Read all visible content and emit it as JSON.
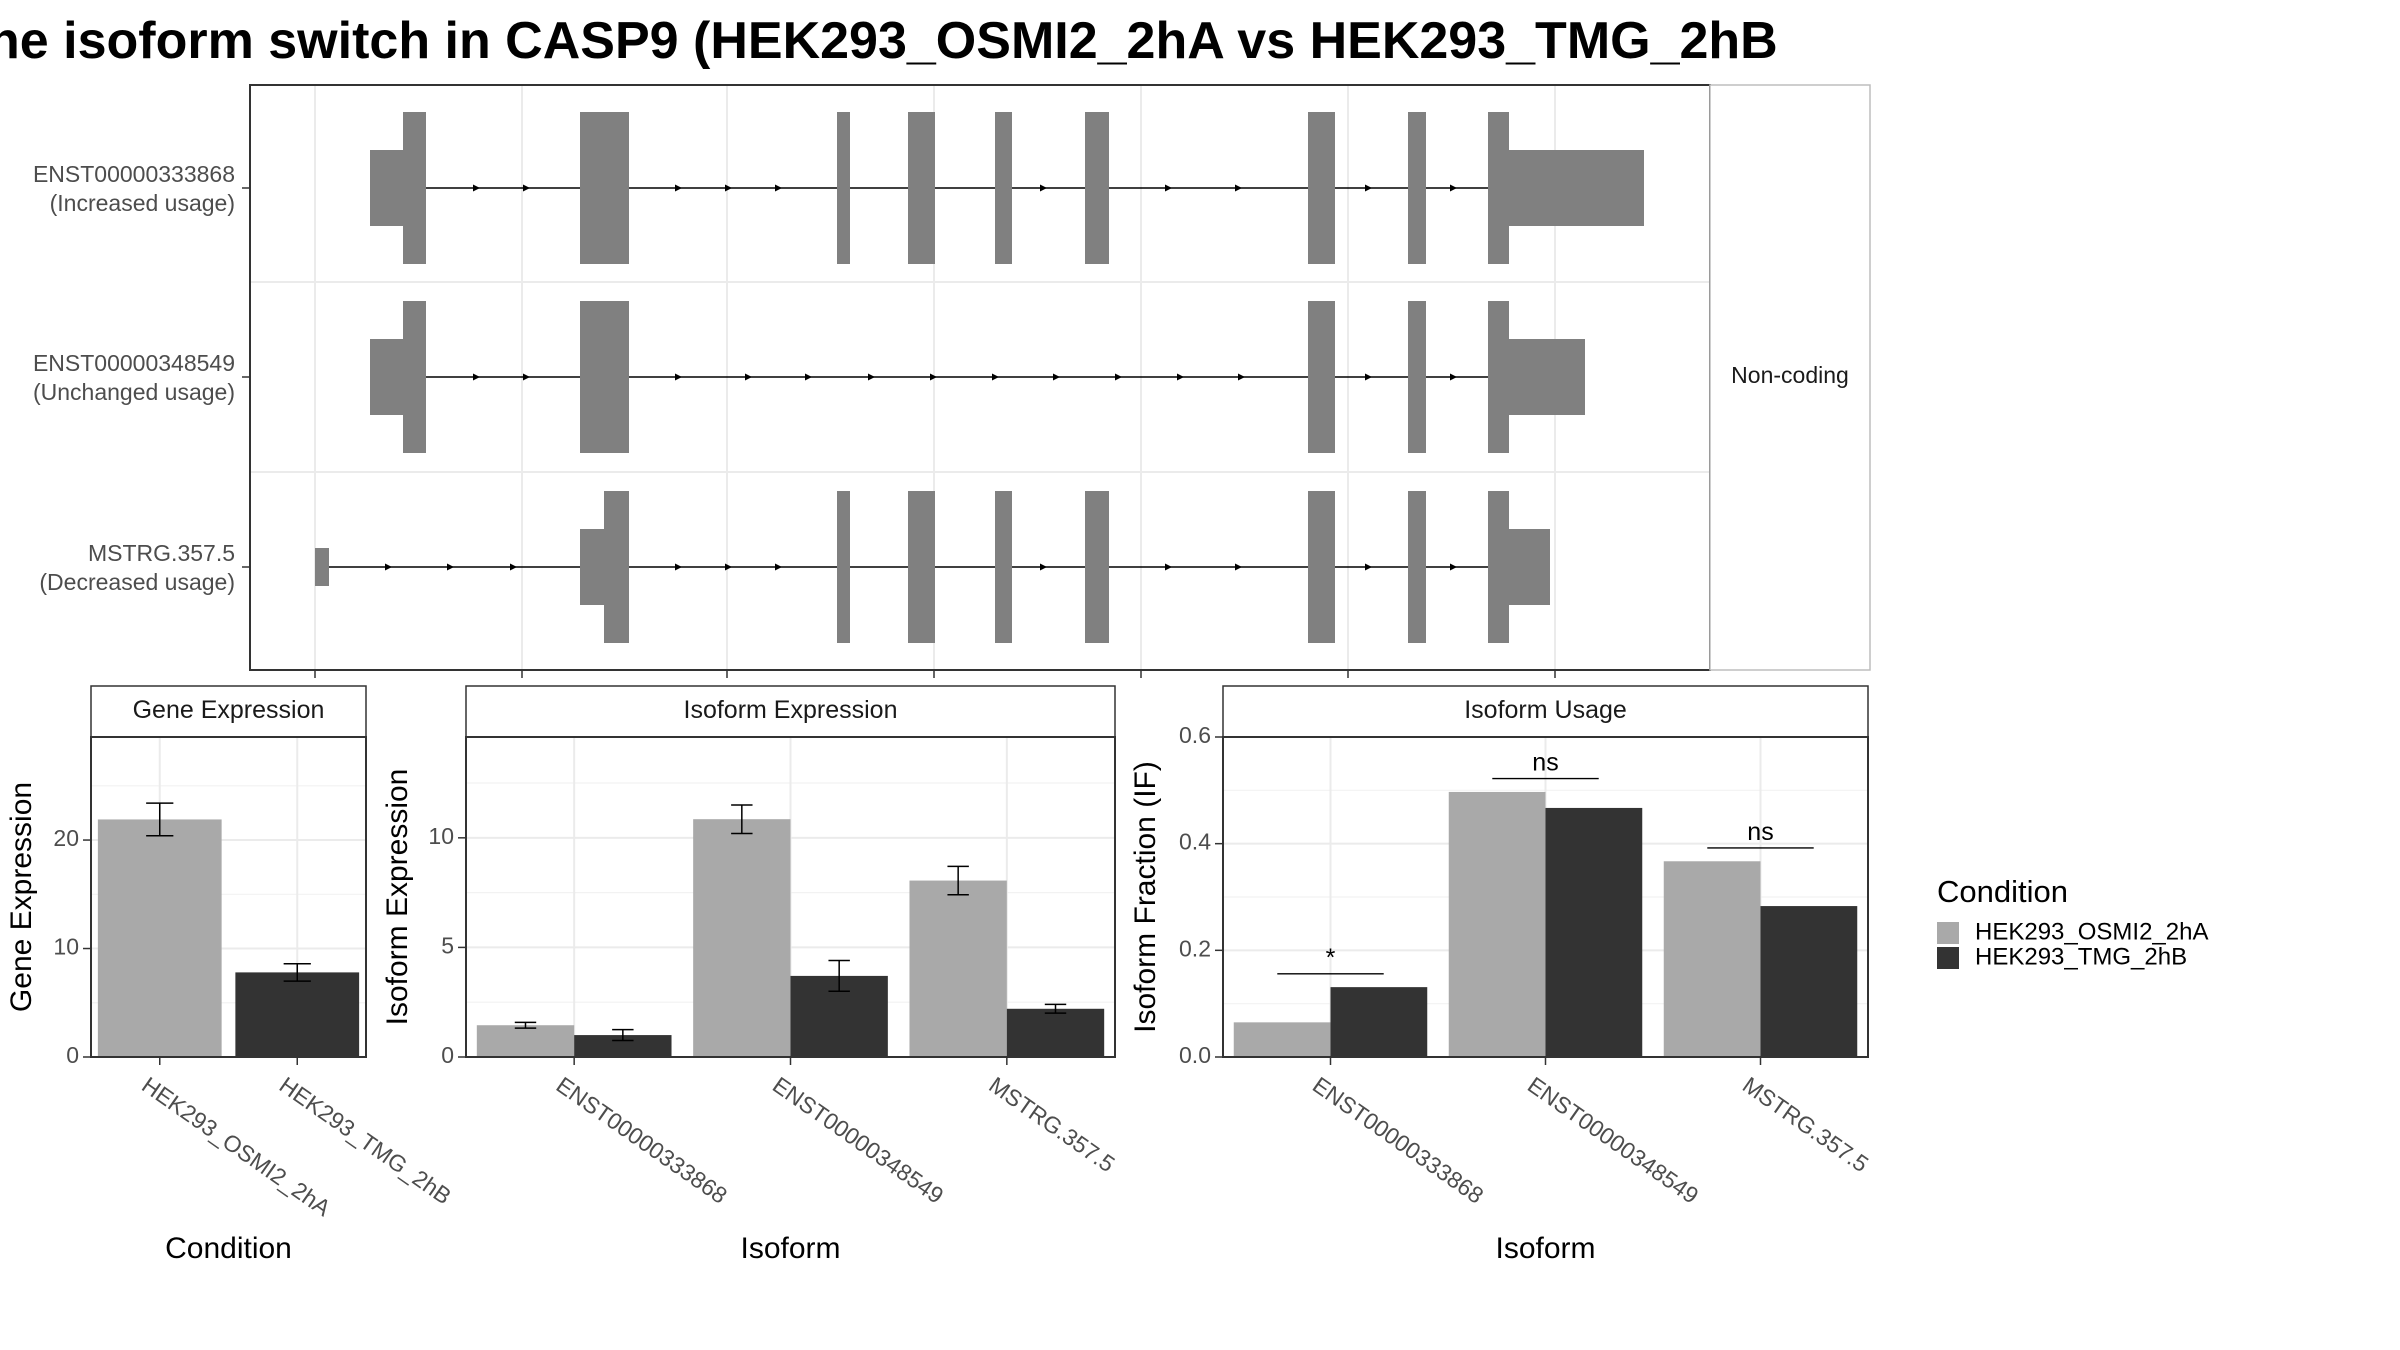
{
  "title": "he isoform switch in CASP9 (HEK293_OSMI2_2hA vs HEK293_TMG_2hB",
  "chart_data": [
    {
      "type": "transcript-structure",
      "rows": [
        {
          "id": "ENST00000333868",
          "label": "ENST00000333868",
          "sublabel": "(Increased usage)"
        },
        {
          "id": "ENST00000348549",
          "label": "ENST00000348549",
          "sublabel": "(Unchanged usage)"
        },
        {
          "id": "MSTRG.357.5",
          "label": "MSTRG.357.5",
          "sublabel": "(Decreased usage)"
        }
      ],
      "strip_label": "Non-coding",
      "feature_color": "#808080"
    },
    {
      "type": "bar",
      "title": "Gene Expression",
      "xlabel": "Condition",
      "ylabel": "Gene Expression",
      "ylim": [
        0,
        29.5
      ],
      "yticks": [
        0,
        10,
        20
      ],
      "grid": true,
      "categories": [
        "HEK293_OSMI2_2hA",
        "HEK293_TMG_2hB"
      ],
      "series": [
        {
          "values": [
            21.9,
            7.8
          ],
          "errors": [
            [
              20.4,
              23.4
            ],
            [
              7.0,
              8.6
            ]
          ],
          "colors": [
            "#a9a9a9",
            "#333333"
          ]
        }
      ]
    },
    {
      "type": "bar",
      "title": "Isoform Expression",
      "xlabel": "Isoform",
      "ylabel": "Isoform Expression",
      "ylim": [
        0,
        14.6
      ],
      "yticks": [
        0,
        5,
        10
      ],
      "grid": true,
      "categories": [
        "ENST00000333868",
        "ENST00000348549",
        "MSTRG.357.5"
      ],
      "series": [
        {
          "name": "HEK293_OSMI2_2hA",
          "color": "#a9a9a9",
          "values": [
            1.45,
            10.85,
            8.05
          ],
          "errors": [
            [
              1.32,
              1.58
            ],
            [
              10.2,
              11.5
            ],
            [
              7.4,
              8.7
            ]
          ]
        },
        {
          "name": "HEK293_TMG_2hB",
          "color": "#333333",
          "values": [
            1.0,
            3.7,
            2.2
          ],
          "errors": [
            [
              0.75,
              1.25
            ],
            [
              3.0,
              4.4
            ],
            [
              2.0,
              2.4
            ]
          ]
        }
      ]
    },
    {
      "type": "bar",
      "title": "Isoform Usage",
      "xlabel": "Isoform",
      "ylabel": "Isoform Fraction (IF)",
      "ylim": [
        0,
        0.6
      ],
      "yticks": [
        0.0,
        0.2,
        0.4,
        0.6
      ],
      "ytick_labels": [
        "0.0",
        "0.2",
        "0.4",
        "0.6"
      ],
      "grid": true,
      "categories": [
        "ENST00000333868",
        "ENST00000348549",
        "MSTRG.357.5"
      ],
      "series": [
        {
          "name": "HEK293_OSMI2_2hA",
          "color": "#a9a9a9",
          "values": [
            0.065,
            0.497,
            0.367
          ]
        },
        {
          "name": "HEK293_TMG_2hB",
          "color": "#333333",
          "values": [
            0.131,
            0.467,
            0.283
          ]
        }
      ],
      "annotations": [
        {
          "category": "ENST00000333868",
          "label": "*",
          "y": 0.156
        },
        {
          "category": "ENST00000348549",
          "label": "ns",
          "y": 0.522
        },
        {
          "category": "MSTRG.357.5",
          "label": "ns",
          "y": 0.392
        }
      ]
    }
  ],
  "legend": {
    "title": "Condition",
    "items": [
      {
        "label": "HEK293_OSMI2_2hA",
        "color": "#a9a9a9"
      },
      {
        "label": "HEK293_TMG_2hB",
        "color": "#333333"
      }
    ]
  }
}
